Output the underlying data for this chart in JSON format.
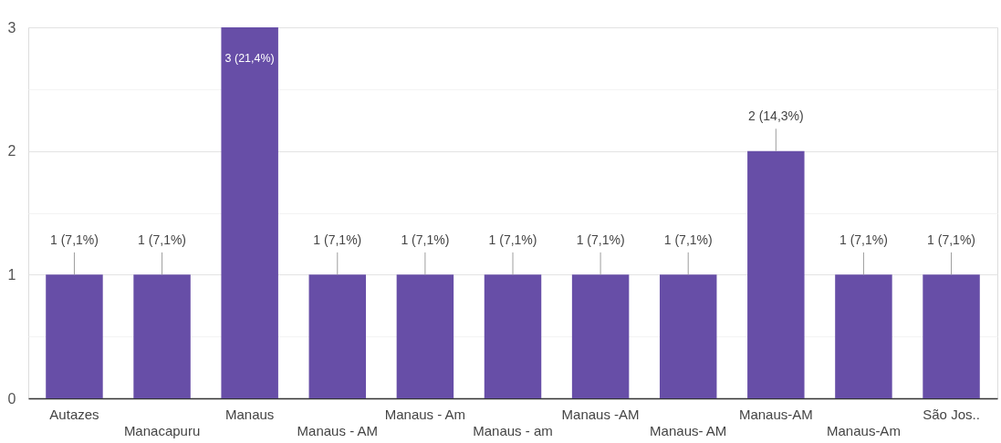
{
  "chart_data": {
    "type": "bar",
    "categories": [
      "Autazes",
      "Manacapuru",
      "Manaus",
      "Manaus - AM",
      "Manaus - Am",
      "Manaus - am",
      "Manaus -AM",
      "Manaus- AM",
      "Manaus-AM",
      "Manaus-Am",
      "São Jos.."
    ],
    "values": [
      1,
      1,
      3,
      1,
      1,
      1,
      1,
      1,
      2,
      1,
      1
    ],
    "value_labels": [
      "1 (7,1%)",
      "1 (7,1%)",
      "3 (21,4%)",
      "1 (7,1%)",
      "1 (7,1%)",
      "1 (7,1%)",
      "1 (7,1%)",
      "1 (7,1%)",
      "2 (14,3%)",
      "1 (7,1%)",
      "1 (7,1%)"
    ],
    "color": "#674ea7",
    "ylim": [
      0,
      3
    ],
    "yticks": [
      0,
      {
        "value": 0.5,
        "label": null
      },
      1,
      {
        "value": 1.5,
        "label": null
      },
      2,
      {
        "value": 2.5,
        "label": null
      },
      3
    ],
    "grid": "y"
  }
}
